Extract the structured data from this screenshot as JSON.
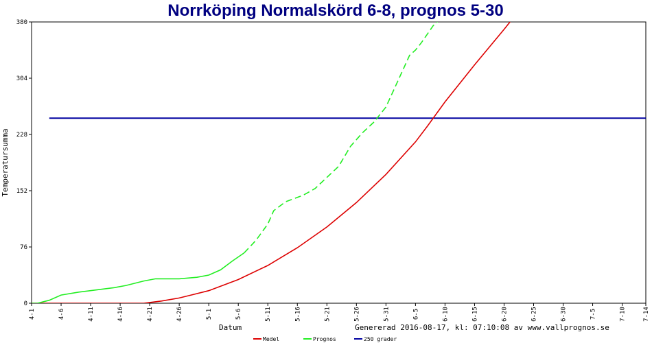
{
  "chart_data": {
    "type": "line",
    "title": "Norrköping Normalskörd 6-8, prognos 5-30",
    "xlabel": "Datum",
    "ylabel": "Temperatursumma",
    "generated": "Genererad 2016-08-17, kl: 07:10:08 av www.vallprognos.se",
    "ylim": [
      0,
      380
    ],
    "y_ticks": [
      "0",
      "76",
      "152",
      "228",
      "304",
      "380"
    ],
    "x_tick_labels": [
      "4-1",
      "4-6",
      "4-11",
      "4-16",
      "4-21",
      "4-26",
      "5-1",
      "5-6",
      "5-11",
      "5-16",
      "5-21",
      "5-26",
      "5-31",
      "6-5",
      "6-10",
      "6-15",
      "6-20",
      "6-25",
      "6-30",
      "7-5",
      "7-10",
      "7-14"
    ],
    "x_unit": "day of year (4-1 = day 0)",
    "xlim": [
      0,
      104
    ],
    "threshold": {
      "name": "250 grader",
      "value": 250,
      "color": "#0000a0"
    },
    "series": [
      {
        "name": "Medel",
        "color": "#dd0000",
        "style": "solid",
        "x": [
          0,
          5,
          10,
          15,
          19,
          20,
          22,
          25,
          27,
          30,
          35,
          40,
          45,
          50,
          55,
          60,
          65,
          67,
          70,
          75,
          80,
          83
        ],
        "y": [
          0,
          0,
          0,
          0,
          0,
          1,
          3,
          7,
          11,
          17,
          32,
          51,
          75,
          103,
          136,
          174,
          218,
          239,
          272,
          322,
          370,
          400
        ]
      },
      {
        "name": "Prognos",
        "color": "#22ee22",
        "style": "solid",
        "x": [
          0,
          1,
          3,
          5,
          8,
          11,
          14,
          16,
          19,
          21,
          25,
          28,
          30,
          32,
          34,
          36
        ],
        "y": [
          0,
          0,
          4,
          11,
          15,
          18,
          21,
          24,
          30,
          33,
          33,
          35,
          38,
          45,
          57,
          68
        ]
      },
      {
        "name": "Prognos",
        "color": "#22ee22",
        "style": "dashed",
        "x": [
          36,
          38,
          40,
          41,
          43,
          46,
          48,
          50,
          52,
          54,
          56,
          58,
          60,
          62,
          64,
          65,
          66,
          68,
          70,
          73
        ],
        "y": [
          68,
          85,
          107,
          125,
          137,
          146,
          155,
          170,
          185,
          212,
          230,
          245,
          265,
          300,
          335,
          342,
          352,
          375,
          390,
          410
        ]
      }
    ],
    "legend": [
      {
        "name": "Medel",
        "color": "#dd0000"
      },
      {
        "name": "Prognos",
        "color": "#22ee22"
      },
      {
        "name": "250 grader",
        "color": "#0000a0"
      }
    ]
  }
}
